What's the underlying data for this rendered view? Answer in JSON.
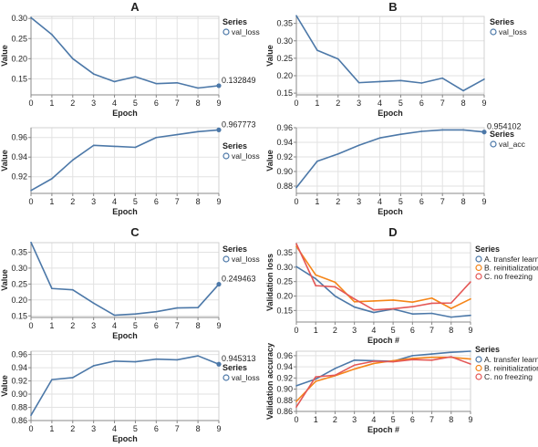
{
  "panel_titles": [
    "A",
    "B",
    "C",
    "D"
  ],
  "colors": {
    "blue": "#4c78a8",
    "orange": "#f58518",
    "red": "#e45756"
  },
  "chart_data": [
    {
      "id": "A-loss",
      "type": "line",
      "panel": "A",
      "xlabel": "Epoch",
      "ylabel": "Value",
      "xlim": [
        0,
        9
      ],
      "ylim": [
        0.11,
        0.305
      ],
      "yticks": [
        0.15,
        0.2,
        0.25,
        0.3
      ],
      "ytick_labels": [
        "0.15",
        "0.20",
        "0.25",
        "0.30"
      ],
      "xticks": [
        0,
        1,
        2,
        3,
        4,
        5,
        6,
        7,
        8,
        9
      ],
      "legend_title": "Series",
      "legend_position": "right",
      "end_label": "0.132849",
      "series": [
        {
          "name": "val_loss",
          "color": "#4c78a8",
          "x": [
            0,
            1,
            2,
            3,
            4,
            5,
            6,
            7,
            8,
            9
          ],
          "values": [
            0.302,
            0.26,
            0.2,
            0.162,
            0.143,
            0.155,
            0.138,
            0.14,
            0.127,
            0.132849
          ]
        }
      ]
    },
    {
      "id": "A-acc",
      "type": "line",
      "panel": "A",
      "xlabel": "Epoch",
      "ylabel": "Value",
      "xlim": [
        0,
        9
      ],
      "ylim": [
        0.903,
        0.97
      ],
      "yticks": [
        0.92,
        0.94,
        0.96
      ],
      "ytick_labels": [
        "0.92",
        "0.94",
        "0.96"
      ],
      "xticks": [
        0,
        1,
        2,
        3,
        4,
        5,
        6,
        7,
        8,
        9
      ],
      "legend_title": "Series",
      "legend_position": "right",
      "end_label": "0.967773",
      "series": [
        {
          "name": "val_loss",
          "color": "#4c78a8",
          "x": [
            0,
            1,
            2,
            3,
            4,
            5,
            6,
            7,
            8,
            9
          ],
          "values": [
            0.906,
            0.918,
            0.937,
            0.952,
            0.951,
            0.95,
            0.96,
            0.963,
            0.966,
            0.967773
          ]
        }
      ]
    },
    {
      "id": "B-loss",
      "type": "line",
      "panel": "B",
      "xlabel": "Epoch",
      "ylabel": "Value",
      "xlim": [
        0,
        9
      ],
      "ylim": [
        0.145,
        0.37
      ],
      "yticks": [
        0.15,
        0.2,
        0.25,
        0.3,
        0.35
      ],
      "ytick_labels": [
        "0.15",
        "0.20",
        "0.25",
        "0.30",
        "0.35"
      ],
      "xticks": [
        0,
        1,
        2,
        3,
        4,
        5,
        6,
        7,
        8,
        9
      ],
      "legend_title": "Series",
      "legend_position": "top-right",
      "series": [
        {
          "name": "val_loss",
          "color": "#4c78a8",
          "x": [
            0,
            1,
            2,
            3,
            4,
            5,
            6,
            7,
            8,
            9
          ],
          "values": [
            0.372,
            0.273,
            0.248,
            0.18,
            0.183,
            0.186,
            0.179,
            0.193,
            0.157,
            0.19
          ]
        }
      ]
    },
    {
      "id": "B-acc",
      "type": "line",
      "panel": "B",
      "xlabel": "Epoch",
      "ylabel": "Value",
      "xlim": [
        0,
        9
      ],
      "ylim": [
        0.87,
        0.96
      ],
      "yticks": [
        0.88,
        0.9,
        0.92,
        0.94,
        0.96
      ],
      "ytick_labels": [
        "0.88",
        "0.90",
        "0.92",
        "0.94",
        "0.96"
      ],
      "xticks": [
        0,
        1,
        2,
        3,
        4,
        5,
        6,
        7,
        8,
        9
      ],
      "legend_title": "Series",
      "legend_position": "right",
      "end_label": "0.954102",
      "series": [
        {
          "name": "val_acc",
          "color": "#4c78a8",
          "x": [
            0,
            1,
            2,
            3,
            4,
            5,
            6,
            7,
            8,
            9
          ],
          "values": [
            0.878,
            0.914,
            0.924,
            0.936,
            0.946,
            0.951,
            0.955,
            0.957,
            0.957,
            0.954102
          ]
        }
      ]
    },
    {
      "id": "C-loss",
      "type": "line",
      "panel": "C",
      "xlabel": "Epoch",
      "ylabel": "Value",
      "xlim": [
        0,
        9
      ],
      "ylim": [
        0.145,
        0.38
      ],
      "yticks": [
        0.15,
        0.2,
        0.25,
        0.3,
        0.35
      ],
      "ytick_labels": [
        "0.15",
        "0.20",
        "0.25",
        "0.30",
        "0.35"
      ],
      "xticks": [
        0,
        1,
        2,
        3,
        4,
        5,
        6,
        7,
        8,
        9
      ],
      "legend_title": "Series",
      "legend_position": "right",
      "end_label": "0.249463",
      "series": [
        {
          "name": "val_loss",
          "color": "#4c78a8",
          "x": [
            0,
            1,
            2,
            3,
            4,
            5,
            6,
            7,
            8,
            9
          ],
          "values": [
            0.381,
            0.236,
            0.232,
            0.19,
            0.152,
            0.156,
            0.163,
            0.175,
            0.176,
            0.249463
          ]
        }
      ]
    },
    {
      "id": "C-acc",
      "type": "line",
      "panel": "C",
      "xlabel": "Epoch",
      "ylabel": "Value",
      "xlim": [
        0,
        9
      ],
      "ylim": [
        0.86,
        0.965
      ],
      "yticks": [
        0.86,
        0.88,
        0.9,
        0.92,
        0.94,
        0.96
      ],
      "ytick_labels": [
        "0.86",
        "0.88",
        "0.90",
        "0.92",
        "0.94",
        "0.96"
      ],
      "xticks": [
        0,
        1,
        2,
        3,
        4,
        5,
        6,
        7,
        8,
        9
      ],
      "legend_title": "Series",
      "legend_position": "right",
      "end_label": "0.945313",
      "series": [
        {
          "name": "val_loss",
          "color": "#4c78a8",
          "x": [
            0,
            1,
            2,
            3,
            4,
            5,
            6,
            7,
            8,
            9
          ],
          "values": [
            0.868,
            0.922,
            0.925,
            0.943,
            0.95,
            0.949,
            0.953,
            0.952,
            0.958,
            0.945313
          ]
        }
      ]
    },
    {
      "id": "D-loss",
      "type": "line",
      "panel": "D",
      "xlabel": "Epoch #",
      "ylabel": "Validation loss",
      "xlim": [
        0,
        9
      ],
      "ylim": [
        0.11,
        0.385
      ],
      "yticks": [
        0.15,
        0.2,
        0.25,
        0.3,
        0.35
      ],
      "ytick_labels": [
        "0.15",
        "0.20",
        "0.25",
        "0.30",
        "0.35"
      ],
      "xticks": [
        0,
        1,
        2,
        3,
        4,
        5,
        6,
        7,
        8,
        9
      ],
      "legend_title": "Series",
      "legend_position": "right",
      "series": [
        {
          "name": "A. transfer learning",
          "color": "#4c78a8",
          "x": [
            0,
            1,
            2,
            3,
            4,
            5,
            6,
            7,
            8,
            9
          ],
          "values": [
            0.302,
            0.26,
            0.2,
            0.162,
            0.143,
            0.155,
            0.138,
            0.14,
            0.127,
            0.133
          ]
        },
        {
          "name": "B. reinitialization",
          "color": "#f58518",
          "x": [
            0,
            1,
            2,
            3,
            4,
            5,
            6,
            7,
            8,
            9
          ],
          "values": [
            0.372,
            0.273,
            0.248,
            0.18,
            0.183,
            0.186,
            0.179,
            0.193,
            0.157,
            0.19
          ]
        },
        {
          "name": "C. no freezing",
          "color": "#e45756",
          "x": [
            0,
            1,
            2,
            3,
            4,
            5,
            6,
            7,
            8,
            9
          ],
          "values": [
            0.381,
            0.236,
            0.232,
            0.19,
            0.152,
            0.156,
            0.163,
            0.175,
            0.176,
            0.249
          ]
        }
      ]
    },
    {
      "id": "D-acc",
      "type": "line",
      "panel": "D",
      "xlabel": "Epoch #",
      "ylabel": "Validation accuracy",
      "xlim": [
        0,
        9
      ],
      "ylim": [
        0.86,
        0.968
      ],
      "yticks": [
        0.86,
        0.88,
        0.9,
        0.92,
        0.94,
        0.96
      ],
      "ytick_labels": [
        "0.86",
        "0.88",
        "0.90",
        "0.92",
        "0.94",
        "0.96"
      ],
      "xticks": [
        0,
        1,
        2,
        3,
        4,
        5,
        6,
        7,
        8,
        9
      ],
      "legend_title": "Series",
      "legend_position": "right",
      "series": [
        {
          "name": "A. transfer learning",
          "color": "#4c78a8",
          "x": [
            0,
            1,
            2,
            3,
            4,
            5,
            6,
            7,
            8,
            9
          ],
          "values": [
            0.906,
            0.918,
            0.937,
            0.952,
            0.951,
            0.95,
            0.96,
            0.963,
            0.966,
            0.968
          ]
        },
        {
          "name": "B. reinitialization",
          "color": "#f58518",
          "x": [
            0,
            1,
            2,
            3,
            4,
            5,
            6,
            7,
            8,
            9
          ],
          "values": [
            0.878,
            0.914,
            0.924,
            0.936,
            0.946,
            0.951,
            0.955,
            0.957,
            0.957,
            0.954
          ]
        },
        {
          "name": "C. no freezing",
          "color": "#e45756",
          "x": [
            0,
            1,
            2,
            3,
            4,
            5,
            6,
            7,
            8,
            9
          ],
          "values": [
            0.868,
            0.922,
            0.925,
            0.943,
            0.95,
            0.949,
            0.953,
            0.952,
            0.958,
            0.945
          ]
        }
      ]
    }
  ]
}
